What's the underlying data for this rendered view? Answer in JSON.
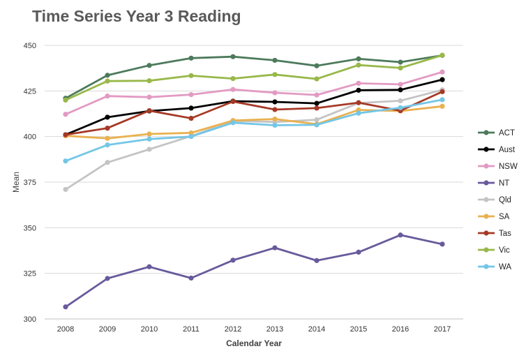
{
  "chart_data": {
    "type": "line",
    "title": "Time Series Year 3 Reading",
    "xlabel": "Calendar Year",
    "ylabel": "Mean",
    "x": [
      "2008",
      "2009",
      "2010",
      "2011",
      "2012",
      "2013",
      "2014",
      "2015",
      "2016",
      "2017"
    ],
    "ylim": [
      300,
      450
    ],
    "yticks": [
      300,
      325,
      350,
      375,
      400,
      425,
      450
    ],
    "grid": true,
    "legend_position": "right",
    "series": [
      {
        "name": "ACT",
        "color": "#4d7a5c",
        "values": [
          421,
          433.6,
          439,
          443,
          443.8,
          441.8,
          438.8,
          442.6,
          440.8,
          444.5
        ]
      },
      {
        "name": "Aust",
        "color": "#000000",
        "values": [
          401,
          410.6,
          414,
          415.6,
          419.4,
          419,
          418.2,
          425.4,
          425.6,
          431.2
        ]
      },
      {
        "name": "NSW",
        "color": "#e29ac3",
        "values": [
          412.2,
          422.2,
          421.6,
          423,
          425.8,
          424,
          422.8,
          429.2,
          428.6,
          435.4
        ]
      },
      {
        "name": "NT",
        "color": "#685a9c",
        "values": [
          306.6,
          322.2,
          328.6,
          322.4,
          332.2,
          339,
          332,
          336.6,
          346,
          341
        ]
      },
      {
        "name": "Qld",
        "color": "#c4c4c4",
        "values": [
          371,
          385.8,
          393,
          400.2,
          408.6,
          408,
          409.2,
          418.4,
          419.6,
          425.6
        ]
      },
      {
        "name": "SA",
        "color": "#e9b150",
        "values": [
          400.4,
          399,
          401.4,
          402,
          408.8,
          409.6,
          406.8,
          414.6,
          414,
          416.6
        ]
      },
      {
        "name": "Tas",
        "color": "#a53a26",
        "values": [
          401,
          404.6,
          414.2,
          410,
          419.2,
          414.8,
          415.6,
          418.6,
          414.2,
          424.6
        ]
      },
      {
        "name": "Vic",
        "color": "#98b84a",
        "values": [
          420,
          430.4,
          430.6,
          433.4,
          431.8,
          434,
          431.6,
          439.2,
          437.6,
          444.6
        ]
      },
      {
        "name": "WA",
        "color": "#74c6e6",
        "values": [
          386.6,
          395.4,
          398.6,
          400,
          407.6,
          406.2,
          406.4,
          412.8,
          415.8,
          420.2
        ]
      }
    ]
  }
}
